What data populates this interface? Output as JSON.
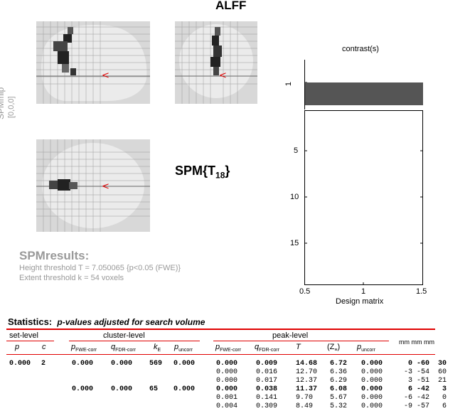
{
  "window": {
    "title": "ALFF"
  },
  "mip": {
    "side_label": "SPMmip",
    "side_coords": "[0,0,0]",
    "stat_label": "SPM{T",
    "stat_df": "18",
    "stat_close": "}"
  },
  "results": {
    "heading": "SPMresults:",
    "height_threshold": "Height threshold T = 7.050065  {p<0.05 (FWE)}",
    "extent_threshold": "Extent threshold k = 54 voxels"
  },
  "design": {
    "contrast_title": "contrast(s)",
    "contrast_tick": "1",
    "y_ticks": [
      "5",
      "10",
      "15"
    ],
    "x_ticks": [
      "0.5",
      "1",
      "1.5"
    ],
    "xlabel": "Design matrix"
  },
  "stats": {
    "title": "Statistics:",
    "subtitle": "p-values adjusted for search volume",
    "group_set": "set-level",
    "group_cluster": "cluster-level",
    "group_peak": "peak-level",
    "mm_header": "mm mm mm",
    "cols": {
      "p": "p",
      "c": "c",
      "p_fwe": "p",
      "p_fwe_sub": "FWE-corr",
      "q_fdr": "q",
      "q_fdr_sub": "FDR-corr",
      "k": "k",
      "k_sub": "E",
      "p_unc": "p",
      "p_unc_sub": "uncorr",
      "pk_p_fwe": "p",
      "pk_p_fwe_sub": "FWE-corr",
      "pk_q_fdr": "q",
      "pk_q_fdr_sub": "FDR-corr",
      "T": "T",
      "Z": "(Z",
      "Z_sub": "≡",
      "Z_close": ")",
      "pk_p_unc": "p",
      "pk_p_unc_sub": "uncorr"
    },
    "rows": [
      {
        "set_p": "0.000",
        "set_c": "2",
        "cl_pfwe": "0.000",
        "cl_qfdr": "0.000",
        "cl_k": "569",
        "cl_punc": "0.000",
        "pk_pfwe": "0.000",
        "pk_qfdr": "0.009",
        "T": "14.68",
        "Z": "6.72",
        "pk_punc": "0.000",
        "mm": "0 -60  30",
        "bold": true
      },
      {
        "set_p": "",
        "set_c": "",
        "cl_pfwe": "",
        "cl_qfdr": "",
        "cl_k": "",
        "cl_punc": "",
        "pk_pfwe": "0.000",
        "pk_qfdr": "0.016",
        "T": "12.70",
        "Z": "6.36",
        "pk_punc": "0.000",
        "mm": "-3 -54  60",
        "bold": false
      },
      {
        "set_p": "",
        "set_c": "",
        "cl_pfwe": "",
        "cl_qfdr": "",
        "cl_k": "",
        "cl_punc": "",
        "pk_pfwe": "0.000",
        "pk_qfdr": "0.017",
        "T": "12.37",
        "Z": "6.29",
        "pk_punc": "0.000",
        "mm": "3 -51  21",
        "bold": false
      },
      {
        "set_p": "",
        "set_c": "",
        "cl_pfwe": "0.000",
        "cl_qfdr": "0.000",
        "cl_k": "65",
        "cl_punc": "0.000",
        "pk_pfwe": "0.000",
        "pk_qfdr": "0.038",
        "T": "11.37",
        "Z": "6.08",
        "pk_punc": "0.000",
        "mm": "6 -42   3",
        "bold": true
      },
      {
        "set_p": "",
        "set_c": "",
        "cl_pfwe": "",
        "cl_qfdr": "",
        "cl_k": "",
        "cl_punc": "",
        "pk_pfwe": "0.001",
        "pk_qfdr": "0.141",
        "T": "9.70",
        "Z": "5.67",
        "pk_punc": "0.000",
        "mm": "-6 -42   0",
        "bold": false
      },
      {
        "set_p": "",
        "set_c": "",
        "cl_pfwe": "",
        "cl_qfdr": "",
        "cl_k": "",
        "cl_punc": "",
        "pk_pfwe": "0.004",
        "pk_qfdr": "0.309",
        "T": "8.49",
        "Z": "5.32",
        "pk_punc": "0.000",
        "mm": "-9 -57   6",
        "bold": false
      }
    ]
  },
  "colors": {
    "accent_red": "#e00000",
    "mip_bg": "#d8d8d8",
    "brain": "#ebebeb",
    "bar": "#555555"
  }
}
